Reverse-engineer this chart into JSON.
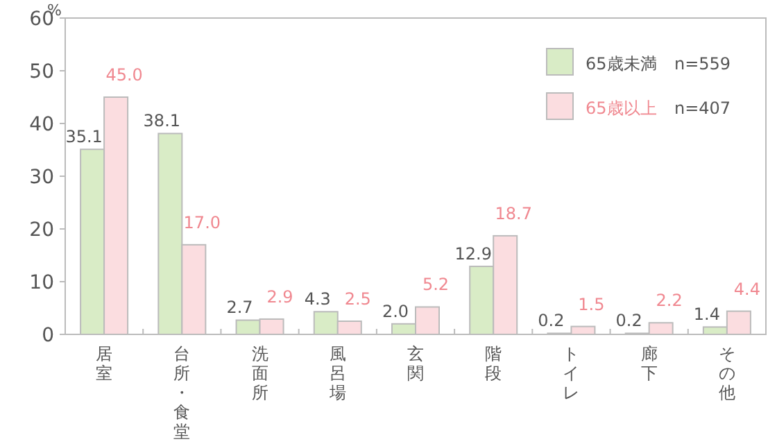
{
  "chart_data": {
    "type": "bar",
    "ylabel": "%",
    "categories": [
      "居室",
      "台所・食堂",
      "洗面所",
      "風呂場",
      "玄関",
      "階段",
      "トイレ",
      "廊下",
      "その他"
    ],
    "series": [
      {
        "name": "65歳未満",
        "color": "#d9ecc6",
        "values": [
          35.1,
          38.1,
          2.7,
          4.3,
          2.0,
          12.9,
          0.2,
          0.2,
          1.4
        ],
        "value_labels": [
          "35.1",
          "38.1",
          "2.7",
          "4.3",
          "2.0",
          "12.9",
          "0.2",
          "0.2",
          "1.4"
        ]
      },
      {
        "name": "65歳以上",
        "color": "#fbdde0",
        "values": [
          45.0,
          17.0,
          2.9,
          2.5,
          5.2,
          18.7,
          1.5,
          2.2,
          4.4
        ],
        "value_labels": [
          "45.0",
          "17.0",
          "2.9",
          "2.5",
          "5.2",
          "18.7",
          "1.5",
          "2.2",
          "4.4"
        ]
      }
    ],
    "annotations": [
      "n=559",
      "n=407"
    ],
    "ylim": [
      0,
      60
    ],
    "yticks": [
      0,
      10,
      20,
      30,
      40,
      50,
      60
    ],
    "legend": "top right"
  }
}
